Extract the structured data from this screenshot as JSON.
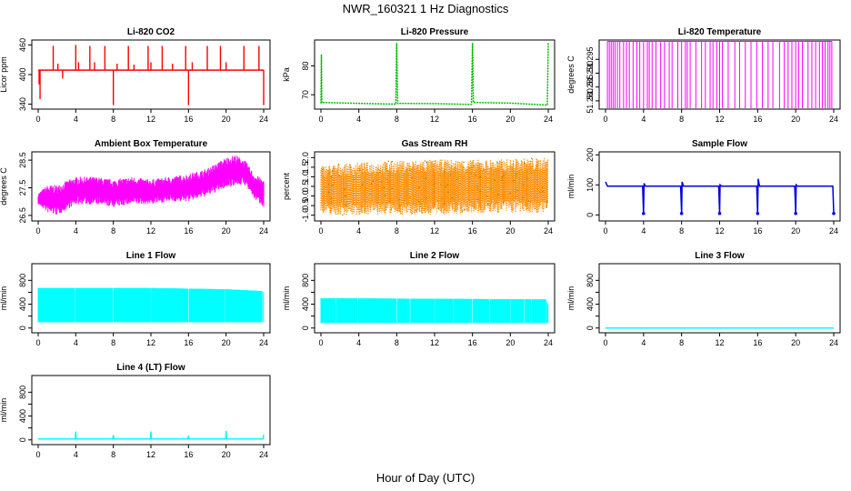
{
  "page": {
    "title": "NWR_160321  1 Hz Diagnostics",
    "xlabel": "Hour of Day (UTC)"
  },
  "chart_data": [
    {
      "type": "line",
      "title": "Li-820 CO2",
      "ylabel": "Licor ppm",
      "color": "#ff0000",
      "xlim": [
        0,
        24
      ],
      "ylim": [
        330,
        470
      ],
      "yticks": [
        340,
        400,
        460
      ],
      "yticklabels": [
        "340",
        "400",
        "460"
      ],
      "xticks": [
        0,
        4,
        8,
        12,
        16,
        20,
        24
      ],
      "baseline": [
        [
          0,
          409
        ],
        [
          24,
          409
        ]
      ],
      "spikes": [
        [
          0.1,
          380
        ],
        [
          0.2,
          350
        ],
        [
          1.6,
          458
        ],
        [
          2.1,
          422
        ],
        [
          2.6,
          392
        ],
        [
          4.0,
          460
        ],
        [
          4.3,
          425
        ],
        [
          5.5,
          458
        ],
        [
          6.0,
          425
        ],
        [
          7.1,
          458
        ],
        [
          8.0,
          338
        ],
        [
          8.4,
          422
        ],
        [
          9.6,
          458
        ],
        [
          10.2,
          420
        ],
        [
          11.7,
          458
        ],
        [
          12.0,
          425
        ],
        [
          13.2,
          458
        ],
        [
          14.3,
          422
        ],
        [
          15.7,
          458
        ],
        [
          16.0,
          338
        ],
        [
          16.4,
          425
        ],
        [
          18.0,
          458
        ],
        [
          19.4,
          458
        ],
        [
          20.0,
          425
        ],
        [
          21.9,
          458
        ],
        [
          23.5,
          458
        ],
        [
          24.0,
          338
        ]
      ]
    },
    {
      "type": "line",
      "title": "Li-820 Pressure",
      "ylabel": "kPa",
      "color": "#00bb00",
      "xlim": [
        0,
        24
      ],
      "ylim": [
        65,
        89
      ],
      "yticks": [
        70,
        80
      ],
      "yticklabels": [
        "70",
        "80"
      ],
      "xticks": [
        0,
        4,
        8,
        12,
        16,
        20,
        24
      ],
      "points": [
        [
          0,
          67
        ],
        [
          0.05,
          84
        ],
        [
          0.1,
          67.3
        ],
        [
          4,
          67
        ],
        [
          7.9,
          66.7
        ],
        [
          8,
          88
        ],
        [
          8.1,
          67
        ],
        [
          12,
          66.9
        ],
        [
          15.9,
          66.6
        ],
        [
          16,
          88
        ],
        [
          16.1,
          67.3
        ],
        [
          20,
          67.1
        ],
        [
          23.9,
          66.4
        ],
        [
          24,
          88
        ]
      ]
    },
    {
      "type": "line",
      "title": "Li-820 Temperature",
      "ylabel": "degrees C",
      "color": "#ff00ff",
      "xlim": [
        0,
        24
      ],
      "ylim": [
        51.277,
        51.302
      ],
      "yticks": [
        51.28,
        51.285,
        51.29,
        51.295
      ],
      "yticklabels": [
        "51.280",
        "51.285",
        "51.290",
        "51.295"
      ],
      "xticks": [
        0,
        4,
        8,
        12,
        16,
        20,
        24
      ],
      "low": 51.2773,
      "high": 51.3015,
      "switch_times": [
        0.2,
        0.4,
        0.6,
        0.8,
        1.0,
        1.25,
        1.5,
        1.9,
        2.2,
        2.5,
        2.9,
        3.3,
        3.6,
        4.0,
        4.4,
        4.6,
        4.9,
        5.3,
        5.8,
        6.2,
        6.7,
        7.0,
        7.6,
        8.0,
        8.4,
        8.6,
        8.9,
        9.5,
        10.1,
        10.5,
        11.0,
        11.3,
        11.7,
        12.0,
        12.3,
        12.9,
        13.6,
        14.1,
        14.7,
        15.3,
        15.9,
        16.5,
        17.1,
        17.6,
        18.3,
        18.8,
        19.2,
        19.6,
        20.0,
        20.3,
        20.7,
        21.3,
        21.7,
        22.1,
        22.5,
        22.8,
        23.1,
        23.4,
        23.6,
        23.8
      ]
    },
    {
      "type": "line",
      "title": "Ambient Box Temperature",
      "ylabel": "degrees C",
      "color": "#ff00ff",
      "xlim": [
        0,
        24
      ],
      "ylim": [
        26.3,
        28.8
      ],
      "yticks": [
        26.5,
        27.5,
        28.5
      ],
      "yticklabels": [
        "26.5",
        "27.5",
        "28.5"
      ],
      "xticks": [
        0,
        4,
        8,
        12,
        16,
        20,
        24
      ],
      "upper": [
        [
          0,
          27.3
        ],
        [
          1,
          27.6
        ],
        [
          2,
          27.6
        ],
        [
          4,
          27.9
        ],
        [
          6,
          27.9
        ],
        [
          8,
          27.8
        ],
        [
          10,
          27.9
        ],
        [
          12,
          27.8
        ],
        [
          14,
          27.9
        ],
        [
          16,
          28.0
        ],
        [
          18,
          28.2
        ],
        [
          20,
          28.6
        ],
        [
          21,
          28.7
        ],
        [
          22,
          28.5
        ],
        [
          23,
          28.0
        ],
        [
          24,
          27.8
        ]
      ],
      "lower": [
        [
          0,
          26.9
        ],
        [
          1,
          26.6
        ],
        [
          2,
          26.5
        ],
        [
          4,
          26.9
        ],
        [
          6,
          26.9
        ],
        [
          8,
          26.8
        ],
        [
          10,
          26.9
        ],
        [
          12,
          26.9
        ],
        [
          14,
          27.0
        ],
        [
          16,
          27.0
        ],
        [
          18,
          27.2
        ],
        [
          20,
          27.5
        ],
        [
          21,
          27.6
        ],
        [
          22,
          27.6
        ],
        [
          23,
          27.1
        ],
        [
          24,
          26.8
        ]
      ]
    },
    {
      "type": "scatter",
      "title": "Gas Stream RH",
      "ylabel": "percent",
      "color": "#ff8c00",
      "color2": "#888800",
      "xlim": [
        0,
        24
      ],
      "ylim": [
        -1.3,
        2.3
      ],
      "yticks": [
        -1.0,
        -0.5,
        0.0,
        0.5,
        1.0,
        1.5,
        2.0
      ],
      "yticklabels": [
        "-1.0",
        "-0.5",
        "0.0",
        "0.5",
        "1.0",
        "1.5",
        "2.0"
      ],
      "xticks": [
        0,
        4,
        8,
        12,
        16,
        20,
        24
      ],
      "upper": [
        [
          0,
          1.6
        ],
        [
          6,
          1.8
        ],
        [
          12,
          1.9
        ],
        [
          18,
          1.9
        ],
        [
          24,
          2.0
        ]
      ],
      "lower": [
        [
          0,
          -1.0
        ],
        [
          6,
          -1.0
        ],
        [
          12,
          -1.0
        ],
        [
          18,
          -0.9
        ],
        [
          24,
          -0.9
        ]
      ]
    },
    {
      "type": "line",
      "title": "Sample Flow",
      "ylabel": "ml/min",
      "color": "#0000dd",
      "xlim": [
        0,
        24
      ],
      "ylim": [
        -20,
        210
      ],
      "yticks": [
        0,
        100,
        200
      ],
      "yticklabels": [
        "0",
        "100",
        "200"
      ],
      "xticks": [
        0,
        4,
        8,
        12,
        16,
        20,
        24
      ],
      "points": [
        [
          0,
          110
        ],
        [
          0.2,
          96
        ],
        [
          3.9,
          96
        ],
        [
          4.0,
          5
        ],
        [
          4.05,
          105
        ],
        [
          4.2,
          96
        ],
        [
          7.9,
          96
        ],
        [
          8.0,
          5
        ],
        [
          8.05,
          110
        ],
        [
          8.2,
          96
        ],
        [
          11.9,
          96
        ],
        [
          12.0,
          5
        ],
        [
          12.05,
          100
        ],
        [
          12.2,
          96
        ],
        [
          15.9,
          96
        ],
        [
          16.0,
          5
        ],
        [
          16.05,
          120
        ],
        [
          16.2,
          96
        ],
        [
          19.9,
          96
        ],
        [
          20.0,
          5
        ],
        [
          20.05,
          100
        ],
        [
          20.2,
          96
        ],
        [
          23.9,
          96
        ],
        [
          24.0,
          5
        ]
      ]
    },
    {
      "type": "area",
      "title": "Line 1 Flow",
      "ylabel": "ml/min",
      "color": "#00ffff",
      "xlim": [
        0,
        24
      ],
      "ylim": [
        -80,
        1080
      ],
      "yticks": [
        0,
        200,
        400,
        600,
        800
      ],
      "yticklabels": [
        "0",
        "400",
        "800"
      ],
      "yticks_labelled": [
        0,
        400,
        800
      ],
      "xticks": [
        0,
        4,
        8,
        12,
        16,
        20,
        24
      ],
      "band_top": [
        [
          0,
          670
        ],
        [
          12,
          670
        ],
        [
          20,
          650
        ],
        [
          23.9,
          620
        ],
        [
          24,
          600
        ]
      ],
      "band_bottom": 100,
      "gaps": [
        3.9,
        8.0,
        12.0,
        16.0,
        19.9,
        23.9
      ]
    },
    {
      "type": "area",
      "title": "Line 2 Flow",
      "ylabel": "ml/min",
      "color": "#00ffff",
      "xlim": [
        0,
        24
      ],
      "ylim": [
        -80,
        1080
      ],
      "yticks": [
        0,
        200,
        400,
        600,
        800
      ],
      "yticklabels": [
        "0",
        "400",
        "800"
      ],
      "yticks_labelled": [
        0,
        400,
        800
      ],
      "xticks": [
        0,
        4,
        8,
        12,
        16,
        20,
        24
      ],
      "band_top": [
        [
          0,
          500
        ],
        [
          12,
          490
        ],
        [
          23.8,
          480
        ],
        [
          24,
          350
        ]
      ],
      "band_bottom": 90,
      "gaps": [
        1.6,
        3.9,
        8.0,
        9.4,
        12.0,
        14.0,
        16.0,
        17.8,
        20.0,
        21.5,
        22.2,
        23.8
      ]
    },
    {
      "type": "line",
      "title": "Line 3 Flow",
      "ylabel": "ml/min",
      "color": "#00ffff",
      "xlim": [
        0,
        24
      ],
      "ylim": [
        -80,
        1080
      ],
      "yticks": [
        0,
        200,
        400,
        600,
        800
      ],
      "yticklabels": [
        "0",
        "400",
        "800"
      ],
      "yticks_labelled": [
        0,
        400,
        800
      ],
      "xticks": [
        0,
        4,
        8,
        12,
        16,
        20,
        24
      ],
      "points": [
        [
          0,
          0
        ],
        [
          24,
          0
        ]
      ]
    },
    {
      "type": "line",
      "title": "Line 4 (LT) Flow",
      "ylabel": "ml/min",
      "color": "#00ffff",
      "xlim": [
        0,
        24
      ],
      "ylim": [
        -80,
        1080
      ],
      "yticks": [
        0,
        200,
        400,
        600,
        800
      ],
      "yticklabels": [
        "0",
        "400",
        "800"
      ],
      "yticks_labelled": [
        0,
        400,
        800
      ],
      "xticks": [
        0,
        4,
        8,
        12,
        16,
        20,
        24
      ],
      "points": [
        [
          0,
          15
        ],
        [
          3.95,
          15
        ],
        [
          4.0,
          140
        ],
        [
          4.05,
          15
        ],
        [
          7.95,
          15
        ],
        [
          8.0,
          80
        ],
        [
          8.05,
          15
        ],
        [
          11.95,
          15
        ],
        [
          12.0,
          140
        ],
        [
          12.05,
          15
        ],
        [
          15.95,
          15
        ],
        [
          16.0,
          70
        ],
        [
          16.05,
          15
        ],
        [
          19.95,
          15
        ],
        [
          20.0,
          150
        ],
        [
          20.05,
          15
        ],
        [
          23.95,
          15
        ],
        [
          24.0,
          90
        ]
      ]
    }
  ]
}
